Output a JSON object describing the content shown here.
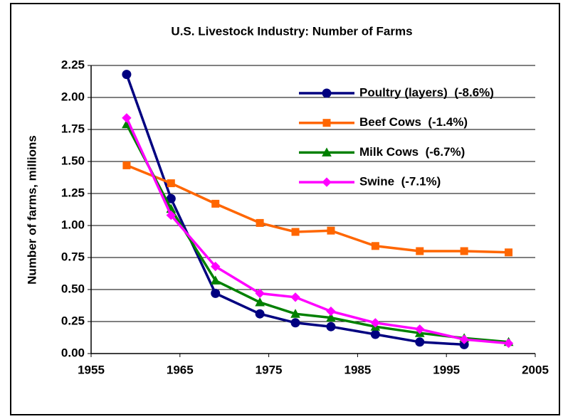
{
  "chart_data": {
    "type": "line",
    "title": "U.S. Livestock Industry: Number of Farms",
    "y_label": "Number of farms, millions",
    "x": [
      1959,
      1964,
      1969,
      1974,
      1978,
      1982,
      1987,
      1992,
      1997,
      2002
    ],
    "series": [
      {
        "name": "Poultry (layers)  (-8.6%)",
        "color": "#000080",
        "marker": "circle",
        "values": [
          2.18,
          1.21,
          0.47,
          0.31,
          0.24,
          0.21,
          0.15,
          0.09,
          0.07,
          null
        ]
      },
      {
        "name": "Beef Cows  (-1.4%)",
        "color": "#ff6600",
        "marker": "square",
        "values": [
          1.47,
          1.33,
          1.17,
          1.02,
          0.95,
          0.96,
          0.84,
          0.8,
          0.8,
          0.79
        ]
      },
      {
        "name": "Milk Cows  (-6.7%)",
        "color": "#008000",
        "marker": "triangle",
        "values": [
          1.79,
          1.13,
          0.57,
          0.4,
          0.31,
          0.28,
          0.21,
          0.16,
          0.12,
          0.09
        ]
      },
      {
        "name": "Swine  (-7.1%)",
        "color": "#ff00ff",
        "marker": "diamond",
        "values": [
          1.84,
          1.08,
          0.68,
          0.47,
          0.44,
          0.33,
          0.24,
          0.19,
          0.11,
          0.08
        ]
      }
    ],
    "xlim": [
      1955,
      2005
    ],
    "xticks": [
      1955,
      1965,
      1975,
      1985,
      1995,
      2005
    ],
    "ylim": [
      0,
      2.25
    ],
    "yticks": [
      {
        "value": 0,
        "label": "0.00"
      },
      {
        "value": 0.25,
        "label": "0.25"
      },
      {
        "value": 0.5,
        "label": "0.50"
      },
      {
        "value": 0.75,
        "label": "0.75"
      },
      {
        "value": 1,
        "label": "1.00"
      },
      {
        "value": 1.25,
        "label": "1.25"
      },
      {
        "value": 1.5,
        "label": "1.50"
      },
      {
        "value": 1.75,
        "label": "1.75"
      },
      {
        "value": 2,
        "label": "2.00"
      },
      {
        "value": 2.25,
        "label": "2.25"
      }
    ],
    "grid": true,
    "legend": "upper right"
  }
}
